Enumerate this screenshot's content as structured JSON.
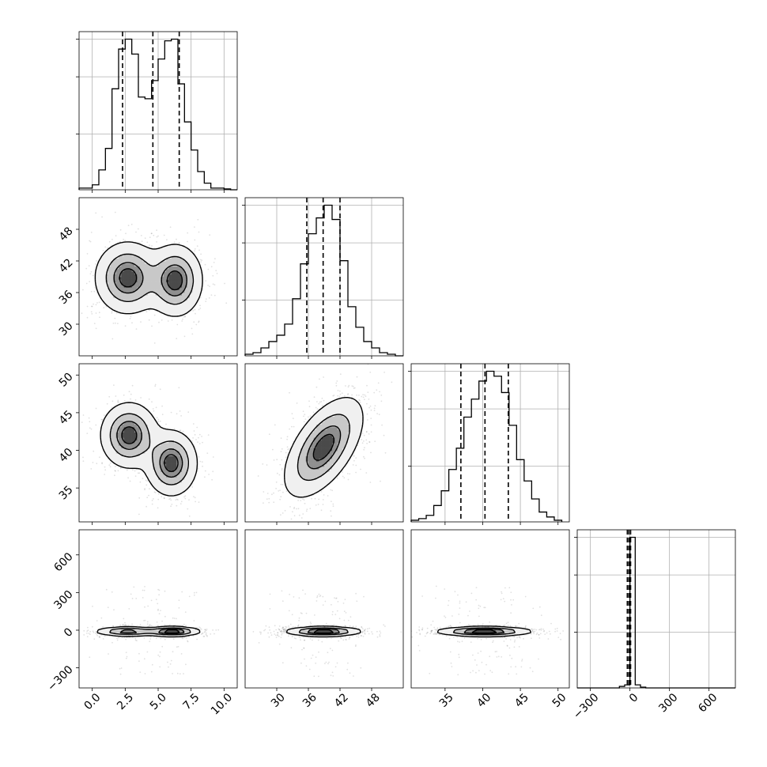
{
  "chart_data": {
    "type": "corner",
    "title": "",
    "parameters": [
      "",
      "",
      "",
      ""
    ],
    "histograms": [
      {
        "name": "param-0",
        "bin_edges": [
          -1.0,
          -0.5,
          0.0,
          0.5,
          1.0,
          1.5,
          2.0,
          2.5,
          3.0,
          3.5,
          4.0,
          4.5,
          5.0,
          5.5,
          6.0,
          6.5,
          7.0,
          7.5,
          8.0,
          8.5,
          9.0,
          9.5,
          10.0,
          10.5,
          11.0
        ],
        "counts": [
          0.01,
          0.01,
          0.03,
          0.12,
          0.25,
          0.61,
          0.85,
          0.91,
          0.82,
          0.56,
          0.55,
          0.66,
          0.79,
          0.9,
          0.91,
          0.64,
          0.41,
          0.24,
          0.11,
          0.04,
          0.01,
          0.01,
          0.005,
          0.0
        ],
        "quantiles": [
          2.3,
          4.6,
          6.6
        ],
        "xlim": [
          -1.0,
          11.0
        ],
        "xticks": [
          0.0,
          2.5,
          5.0,
          7.5,
          10.0
        ]
      },
      {
        "name": "param-1",
        "bin_edges": [
          24,
          25.5,
          27,
          28.5,
          30,
          31.5,
          33,
          34.5,
          36,
          37.5,
          39,
          40.5,
          42,
          43.5,
          45,
          46.5,
          48,
          49.5,
          51,
          52.5,
          54
        ],
        "counts": [
          0.01,
          0.02,
          0.05,
          0.09,
          0.13,
          0.2,
          0.36,
          0.58,
          0.77,
          0.87,
          0.95,
          0.86,
          0.6,
          0.31,
          0.18,
          0.09,
          0.05,
          0.02,
          0.01,
          0.0
        ],
        "quantiles": [
          35.7,
          38.8,
          42.0
        ],
        "xlim": [
          24.0,
          54.0
        ],
        "xticks": [
          30,
          36,
          42,
          48
        ]
      },
      {
        "name": "param-2",
        "bin_edges": [
          30.5,
          31.5,
          32.5,
          33.5,
          34.5,
          35.5,
          36.5,
          37.5,
          38.5,
          39.5,
          40.5,
          41.5,
          42.5,
          43.5,
          44.5,
          45.5,
          46.5,
          47.5,
          48.5,
          49.5,
          50.5
        ],
        "counts": [
          0.01,
          0.02,
          0.04,
          0.1,
          0.19,
          0.32,
          0.45,
          0.64,
          0.75,
          0.86,
          0.92,
          0.89,
          0.79,
          0.59,
          0.38,
          0.25,
          0.14,
          0.06,
          0.03,
          0.01
        ],
        "quantiles": [
          37.1,
          40.3,
          43.4
        ],
        "xlim": [
          30.5,
          51.5
        ],
        "xticks": [
          35,
          40,
          45,
          50
        ]
      },
      {
        "name": "param-3",
        "bin_edges": [
          -400,
          -360,
          -320,
          -280,
          -240,
          -200,
          -160,
          -120,
          -80,
          -40,
          0,
          40,
          80,
          120,
          160,
          200,
          240,
          280,
          320,
          360,
          400,
          440,
          480,
          520,
          560,
          600,
          640,
          680,
          720,
          760,
          800
        ],
        "counts": [
          0,
          0,
          0,
          0,
          0,
          0,
          0,
          0,
          0.01,
          0.02,
          0.98,
          0.02,
          0.005,
          0,
          0,
          0,
          0,
          0,
          0,
          0,
          0,
          0,
          0,
          0,
          0,
          0,
          0,
          0,
          0,
          0
        ],
        "quantiles": [
          -20,
          -8,
          5
        ],
        "xlim": [
          -400.0,
          800.0
        ],
        "xticks": [
          -300,
          0,
          300,
          600
        ]
      }
    ],
    "pairs": [
      {
        "x_param": 0,
        "y_param": 1,
        "ylim": [
          24.0,
          54.0
        ],
        "yticks": [
          30,
          36,
          42,
          48
        ],
        "modes": [
          {
            "mx": 2.7,
            "my": 38.8,
            "sx": 1.2,
            "sy": 3.3,
            "rho": 0.0,
            "w": 1.0
          },
          {
            "mx": 6.3,
            "my": 38.3,
            "sx": 1.0,
            "sy": 3.3,
            "rho": 0.0,
            "w": 1.0
          }
        ]
      },
      {
        "x_param": 0,
        "y_param": 2,
        "ylim": [
          30.5,
          51.5
        ],
        "yticks": [
          35,
          40,
          45,
          50
        ],
        "modes": [
          {
            "mx": 2.8,
            "my": 42.0,
            "sx": 1.05,
            "sy": 2.1,
            "rho": 0.0,
            "w": 1.0
          },
          {
            "mx": 6.0,
            "my": 38.3,
            "sx": 0.95,
            "sy": 2.1,
            "rho": 0.0,
            "w": 1.0
          }
        ]
      },
      {
        "x_param": 1,
        "y_param": 2,
        "ylim": [
          30.5,
          51.5
        ],
        "yticks": [
          35,
          40,
          45,
          50
        ],
        "modes": [
          {
            "mx": 38.9,
            "my": 40.4,
            "sx": 3.6,
            "sy": 3.2,
            "rho": 0.58,
            "w": 1.0
          }
        ]
      },
      {
        "x_param": 0,
        "y_param": 3,
        "ylim": [
          -460.0,
          800.0
        ],
        "yticks": [
          -300,
          0,
          300,
          600
        ],
        "modes": [
          {
            "mx": 2.7,
            "my": -10.0,
            "sx": 1.2,
            "sy": 18.0,
            "rho": 0.0,
            "w": 1.0
          },
          {
            "mx": 6.1,
            "my": -10.0,
            "sx": 1.0,
            "sy": 18.0,
            "rho": 0.0,
            "w": 1.3
          }
        ]
      },
      {
        "x_param": 1,
        "y_param": 3,
        "ylim": [
          -460.0,
          800.0
        ],
        "yticks": [
          -300,
          0,
          300,
          600
        ],
        "modes": [
          {
            "mx": 38.9,
            "my": -10.0,
            "sx": 3.4,
            "sy": 18.0,
            "rho": 0.0,
            "w": 1.0
          }
        ]
      },
      {
        "x_param": 2,
        "y_param": 3,
        "ylim": [
          -460.0,
          800.0
        ],
        "yticks": [
          -300,
          0,
          300,
          600
        ],
        "modes": [
          {
            "mx": 40.2,
            "my": -10.0,
            "sx": 3.0,
            "sy": 18.0,
            "rho": 0.0,
            "w": 1.0
          }
        ]
      }
    ],
    "contour_levels": [
      0.118,
      0.393,
      0.675,
      0.864
    ],
    "contour_fills": [
      "#f0f0f0",
      "#c8c8c8",
      "#8f8f8f",
      "#4a4a4a"
    ],
    "data_point_color": "#000000",
    "grid": true,
    "x_tick_labels": [
      [
        "0.0",
        "2.5",
        "5.0",
        "7.5",
        "10.0"
      ],
      [
        "30",
        "36",
        "42",
        "48"
      ],
      [
        "35",
        "40",
        "45",
        "50"
      ],
      [
        "−300",
        "0",
        "300",
        "600"
      ]
    ],
    "y_tick_labels": [
      [
        "30",
        "36",
        "42",
        "48"
      ],
      [
        "35",
        "40",
        "45",
        "50"
      ],
      [
        "−300",
        "0",
        "300",
        "600"
      ]
    ]
  }
}
